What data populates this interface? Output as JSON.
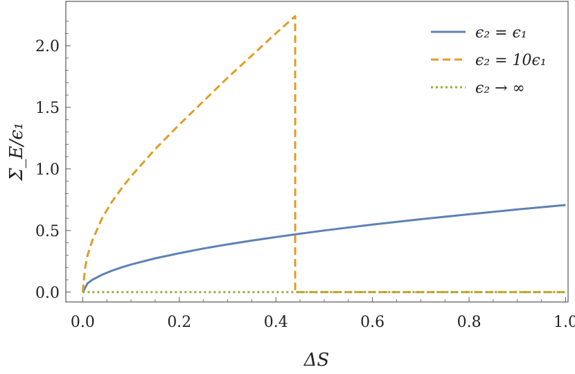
{
  "chart_data": {
    "type": "line",
    "title": "",
    "xlabel": "ΔS",
    "ylabel": "Σ_E/ϵ₁",
    "xlim": [
      -0.035,
      1.005
    ],
    "ylim": [
      -0.08,
      2.36
    ],
    "x_ticks": [
      0.0,
      0.2,
      0.4,
      0.6,
      0.8,
      1.0
    ],
    "x_tick_labels": [
      "0.0",
      "0.2",
      "0.4",
      "0.6",
      "0.8",
      "1.0"
    ],
    "y_ticks": [
      0.0,
      0.5,
      1.0,
      1.5,
      2.0
    ],
    "y_tick_labels": [
      "0.0",
      "0.5",
      "1.0",
      "1.5",
      "2.0"
    ],
    "grid": false,
    "legend_position": "top-right",
    "series": [
      {
        "name": "ϵ₂ = ϵ₁",
        "color": "#5e81b5",
        "dash": "solid",
        "x": [
          0,
          0.01,
          0.02,
          0.04,
          0.06,
          0.08,
          0.1,
          0.15,
          0.2,
          0.25,
          0.3,
          0.35,
          0.4,
          0.44,
          0.5,
          0.6,
          0.7,
          0.8,
          0.9,
          1.0
        ],
        "y": [
          0,
          0.071,
          0.1,
          0.141,
          0.173,
          0.2,
          0.224,
          0.274,
          0.316,
          0.354,
          0.387,
          0.418,
          0.447,
          0.469,
          0.5,
          0.548,
          0.592,
          0.632,
          0.671,
          0.707
        ]
      },
      {
        "name": "ϵ₂ = 10ϵ₁",
        "color": "#e19c24",
        "dash": "dashed",
        "x": [
          0,
          0.005,
          0.01,
          0.02,
          0.04,
          0.06,
          0.08,
          0.1,
          0.15,
          0.2,
          0.25,
          0.3,
          0.35,
          0.4,
          0.44,
          0.44,
          0.5,
          0.6,
          0.7,
          0.8,
          0.9,
          1.0
        ],
        "y": [
          0,
          0.2,
          0.3,
          0.42,
          0.6,
          0.73,
          0.84,
          0.94,
          1.16,
          1.36,
          1.55,
          1.74,
          1.92,
          2.1,
          2.24,
          0,
          0,
          0,
          0,
          0,
          0,
          0
        ]
      },
      {
        "name": "ϵ₂ → ∞",
        "color": "#8fb032",
        "dash": "dotted",
        "x": [
          0,
          1.0
        ],
        "y": [
          0,
          0
        ]
      }
    ]
  }
}
